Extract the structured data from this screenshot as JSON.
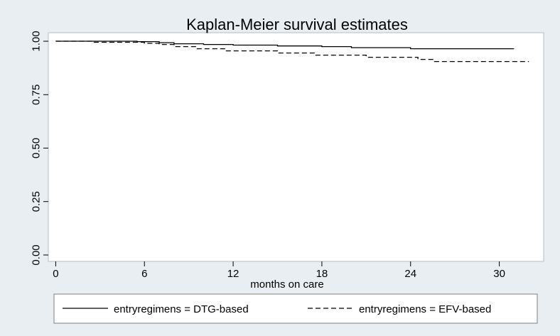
{
  "chart_data": {
    "type": "line",
    "title": "Kaplan-Meier survival estimates",
    "xlabel": "months on care",
    "ylabel": "",
    "xlim": [
      -0.5,
      33
    ],
    "ylim": [
      -0.03,
      1.04
    ],
    "xticks": [
      0,
      6,
      12,
      18,
      24,
      30
    ],
    "yticks": [
      0.0,
      0.25,
      0.5,
      0.75,
      1.0
    ],
    "xtick_labels": [
      "0",
      "6",
      "12",
      "18",
      "24",
      "30"
    ],
    "ytick_labels": [
      "0.00",
      "0.25",
      "0.50",
      "0.75",
      "1.00"
    ],
    "grid": false,
    "legend_position": "bottom",
    "series": [
      {
        "name": "entryregimens = DTG-based",
        "style": "solid",
        "x": [
          0,
          3,
          5.5,
          7,
          8,
          10,
          12,
          15,
          18,
          20,
          24,
          31
        ],
        "y": [
          1.0,
          1.0,
          0.998,
          0.993,
          0.988,
          0.985,
          0.982,
          0.978,
          0.975,
          0.97,
          0.965,
          0.965
        ]
      },
      {
        "name": "entryregimens = EFV-based",
        "style": "dashed",
        "x": [
          0,
          2.5,
          6,
          7,
          8,
          9.5,
          11.5,
          15,
          17.5,
          21,
          24.5,
          25.5,
          32
        ],
        "y": [
          1.0,
          0.995,
          0.99,
          0.985,
          0.975,
          0.965,
          0.955,
          0.945,
          0.935,
          0.925,
          0.915,
          0.905,
          0.905
        ]
      }
    ]
  }
}
